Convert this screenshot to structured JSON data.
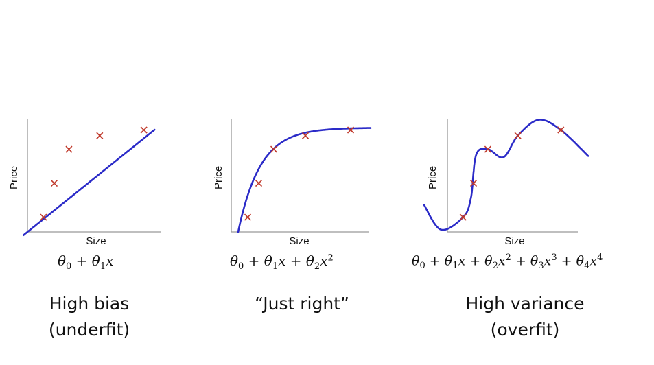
{
  "colors": {
    "curve": "#2b2bc8",
    "marker": "#c0392b",
    "axis": "#999999"
  },
  "chart_data": [
    {
      "type": "scatter",
      "xlabel": "Size",
      "ylabel": "Price",
      "xlim": [
        0,
        10
      ],
      "ylim": [
        0,
        10
      ],
      "points": [
        [
          1.2,
          1.3
        ],
        [
          2.0,
          4.3
        ],
        [
          3.1,
          7.3
        ],
        [
          5.4,
          8.5
        ],
        [
          8.7,
          9.0
        ]
      ],
      "fit": {
        "kind": "linear",
        "degree": 1
      },
      "formula": "θ0 + θ1x",
      "caption": [
        "High bias",
        "(underfit)"
      ]
    },
    {
      "type": "scatter",
      "xlabel": "Size",
      "ylabel": "Price",
      "xlim": [
        0,
        10
      ],
      "ylim": [
        0,
        10
      ],
      "points": [
        [
          1.2,
          1.3
        ],
        [
          2.0,
          4.3
        ],
        [
          3.1,
          7.3
        ],
        [
          5.4,
          8.5
        ],
        [
          8.7,
          9.0
        ]
      ],
      "fit": {
        "kind": "quadratic",
        "degree": 2
      },
      "formula": "θ0 + θ1x + θ2x2",
      "caption": [
        "“Just right”"
      ]
    },
    {
      "type": "scatter",
      "xlabel": "Size",
      "ylabel": "Price",
      "xlim": [
        0,
        10
      ],
      "ylim": [
        0,
        10
      ],
      "points": [
        [
          1.2,
          1.3
        ],
        [
          2.0,
          4.3
        ],
        [
          3.1,
          7.3
        ],
        [
          5.4,
          8.5
        ],
        [
          8.7,
          9.0
        ]
      ],
      "fit": {
        "kind": "quartic",
        "degree": 4
      },
      "formula": "θ0 + θ1x + θ2x2 + θ3x3 + θ4x4",
      "caption": [
        "High variance",
        "(overfit)"
      ]
    }
  ]
}
